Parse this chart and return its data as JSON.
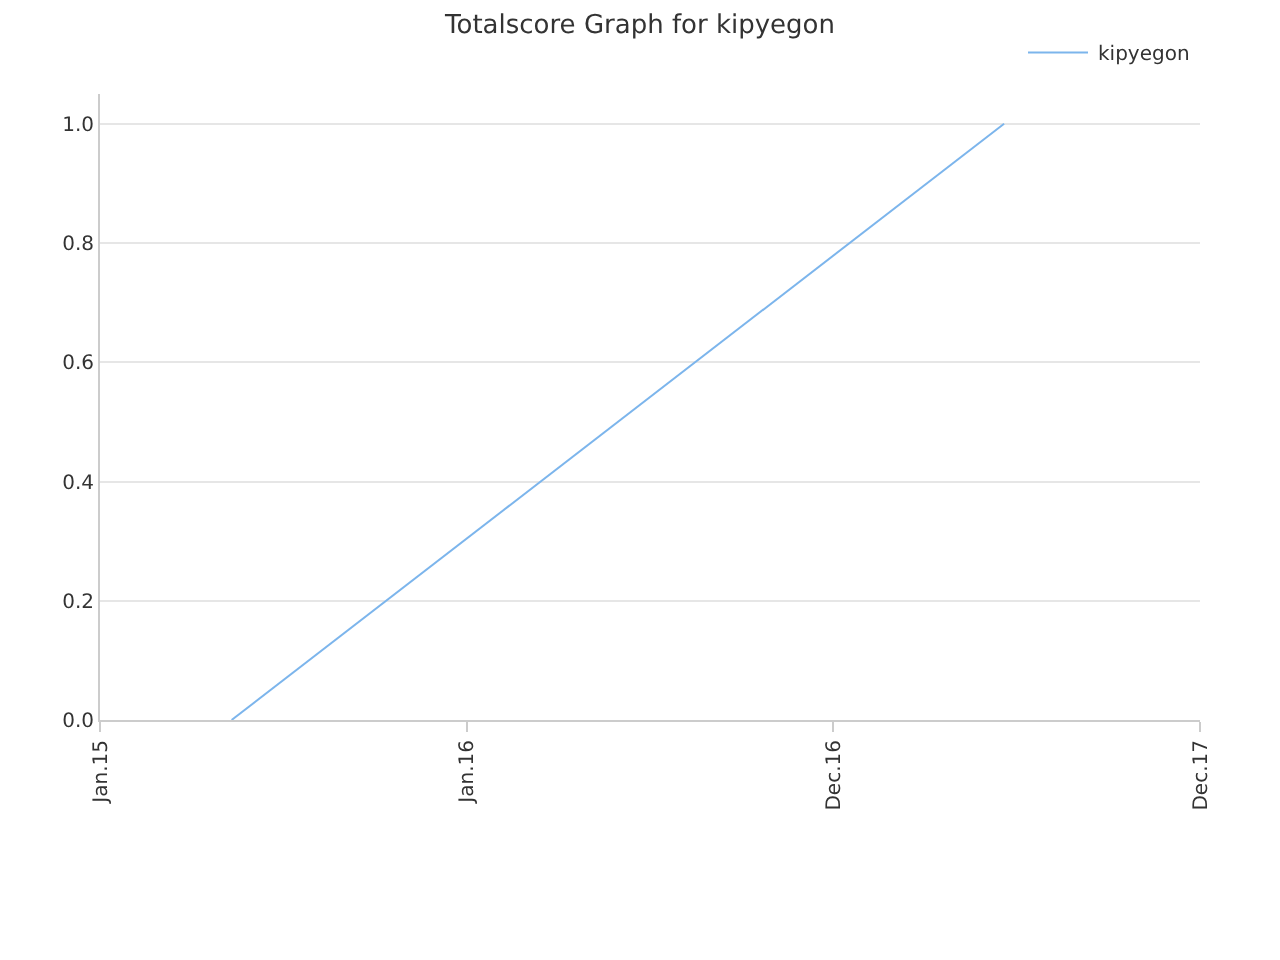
{
  "chart_data": {
    "type": "line",
    "title": "Totalscore Graph for kipyegon",
    "x": [
      "2015-05-12",
      "2017-06-19"
    ],
    "series": [
      {
        "name": "kipyegon",
        "color": "#7cb5ec",
        "values": [
          0,
          1
        ]
      }
    ],
    "xlim": [
      "2015-01-01",
      "2017-12-31"
    ],
    "xticks": [
      {
        "value": "2015-01-01",
        "label": "Jan.15"
      },
      {
        "value": "2016-01-01",
        "label": "Jan.16"
      },
      {
        "value": "2016-12-31",
        "label": "Dec.16"
      },
      {
        "value": "2017-12-31",
        "label": "Dec.17"
      }
    ],
    "ylim": [
      0,
      1.05
    ],
    "yticks": [
      {
        "value": 0,
        "label": "0.0"
      },
      {
        "value": 0.2,
        "label": "0.2"
      },
      {
        "value": 0.4,
        "label": "0.4"
      },
      {
        "value": 0.6,
        "label": "0.6"
      },
      {
        "value": 0.8,
        "label": "0.8"
      },
      {
        "value": 1,
        "label": "1.0"
      }
    ],
    "grid": "y",
    "legend": "top right",
    "marker": "none",
    "line_style": "solid"
  }
}
